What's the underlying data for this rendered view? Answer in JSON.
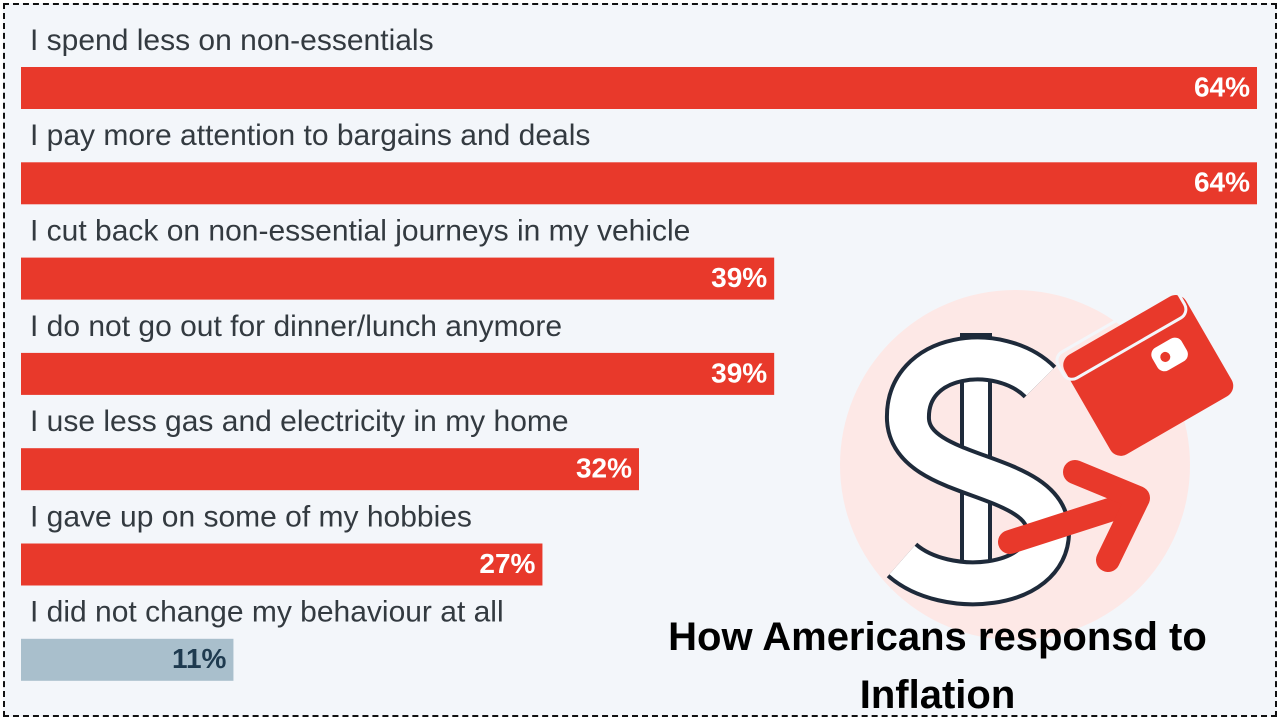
{
  "chart_data": {
    "type": "bar",
    "orientation": "horizontal",
    "title": "How Americans responsd to Inflation",
    "categories": [
      "I spend less on non-essentials",
      "I pay more attention to bargains and deals",
      "I cut back on non-essential journeys in my vehicle",
      "I do not go out for dinner/lunch anymore",
      "I use less gas and electricity in my home",
      "I gave up on some of my hobbies",
      "I did not change my behaviour at all"
    ],
    "values": [
      64,
      64,
      39,
      39,
      32,
      27,
      11
    ],
    "value_labels": [
      "64%",
      "64%",
      "39%",
      "39%",
      "32%",
      "27%",
      "11%"
    ],
    "colors": [
      "#e8392b",
      "#e8392b",
      "#e8392b",
      "#e8392b",
      "#e8392b",
      "#e8392b",
      "#a9bfcc"
    ],
    "label_colors": [
      "#ffffff",
      "#ffffff",
      "#ffffff",
      "#ffffff",
      "#ffffff",
      "#ffffff",
      "#1e3a4f"
    ]
  }
}
